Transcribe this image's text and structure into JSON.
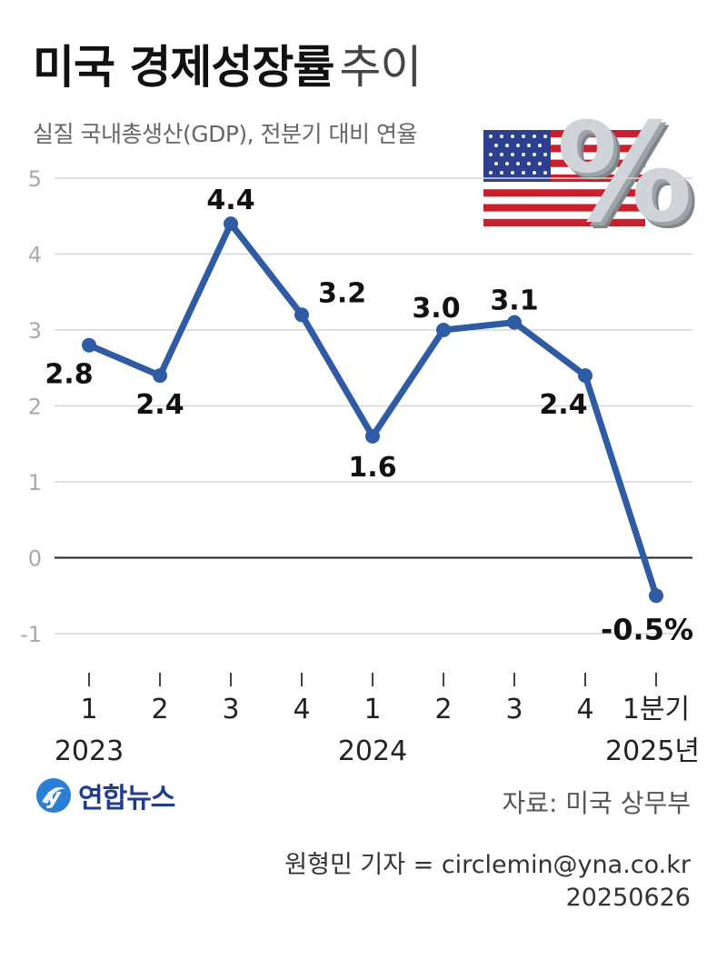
{
  "header": {
    "title": "미국 경제성장률",
    "title_suffix": "추이",
    "subtitle": "실질 국내총생산(GDP), 전분기 대비 연율"
  },
  "decor": {
    "flag_icon": "us-flag-icon",
    "percent_glyph": "%"
  },
  "chart_data": {
    "type": "line",
    "categories": [
      "1",
      "2",
      "3",
      "4",
      "1",
      "2",
      "3",
      "4",
      "1분기"
    ],
    "year_labels": [
      {
        "label": "2023",
        "index": 0
      },
      {
        "label": "2024",
        "index": 4
      },
      {
        "label": "2025년",
        "index": 8
      }
    ],
    "values": [
      2.8,
      2.4,
      4.4,
      3.2,
      1.6,
      3.0,
      3.1,
      2.4,
      -0.5
    ],
    "value_labels": [
      "2.8",
      "2.4",
      "4.4",
      "3.2",
      "1.6",
      "3.0",
      "3.1",
      "2.4",
      "-0.5%"
    ],
    "yticks": [
      "5",
      "4",
      "3",
      "2",
      "1",
      "0",
      "-1"
    ],
    "ylim": [
      -1.5,
      5
    ],
    "grid": true,
    "line_color": "#2e5ba3",
    "grid_color": "#d6d6d6",
    "zero_line_color": "#222222"
  },
  "footer": {
    "logo_text": "연합뉴스",
    "source": "자료: 미국 상무부",
    "reporter": "원형민 기자 = circlemin@yna.co.kr",
    "date": "20250626"
  }
}
